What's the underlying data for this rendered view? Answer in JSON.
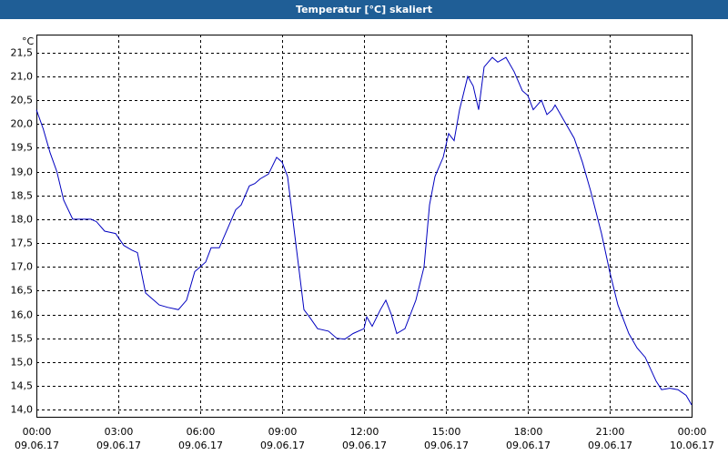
{
  "chart_data": {
    "type": "line",
    "title": "Temperatur [°C] skaliert",
    "y_unit": "°C",
    "x": [
      0,
      0.25,
      0.5,
      0.75,
      1.0,
      1.33,
      2.0,
      2.2,
      2.5,
      2.9,
      3.2,
      3.5,
      3.7,
      4.0,
      4.2,
      4.5,
      4.8,
      5.2,
      5.5,
      5.8,
      6.2,
      6.4,
      6.7,
      7.0,
      7.3,
      7.5,
      7.8,
      8.0,
      8.2,
      8.5,
      8.8,
      9.0,
      9.2,
      9.5,
      9.8,
      10.0,
      10.3,
      10.7,
      11.0,
      11.3,
      11.6,
      12.0,
      12.1,
      12.3,
      12.6,
      12.8,
      13.0,
      13.2,
      13.5,
      13.9,
      14.2,
      14.4,
      14.6,
      14.9,
      15.1,
      15.3,
      15.5,
      15.8,
      16.0,
      16.2,
      16.4,
      16.7,
      16.9,
      17.2,
      17.5,
      17.8,
      18.0,
      18.2,
      18.5,
      18.7,
      18.9,
      19.0,
      19.3,
      19.7,
      20.0,
      20.3,
      20.7,
      21.0,
      21.3,
      21.7,
      22.0,
      22.3,
      22.7,
      22.9,
      23.2,
      23.5,
      23.8,
      24.0
    ],
    "values": [
      20.3,
      19.9,
      19.4,
      19.0,
      18.4,
      18.0,
      18.0,
      17.95,
      17.75,
      17.7,
      17.45,
      17.35,
      17.3,
      16.45,
      16.35,
      16.2,
      16.15,
      16.1,
      16.3,
      16.9,
      17.1,
      17.4,
      17.4,
      17.8,
      18.2,
      18.3,
      18.7,
      18.75,
      18.85,
      18.95,
      19.3,
      19.2,
      18.9,
      17.5,
      16.1,
      15.95,
      15.7,
      15.65,
      15.5,
      15.48,
      15.6,
      15.7,
      15.95,
      15.75,
      16.1,
      16.3,
      16.0,
      15.6,
      15.7,
      16.3,
      17.0,
      18.3,
      18.9,
      19.3,
      19.8,
      19.65,
      20.3,
      21.0,
      20.8,
      20.3,
      21.2,
      21.4,
      21.3,
      21.4,
      21.1,
      20.7,
      20.6,
      20.3,
      20.5,
      20.2,
      20.3,
      20.4,
      20.1,
      19.7,
      19.2,
      18.6,
      17.7,
      16.9,
      16.2,
      15.6,
      15.3,
      15.1,
      14.6,
      14.42,
      14.45,
      14.42,
      14.3,
      14.1
    ],
    "color": "#0000c0",
    "xlim": [
      0,
      24
    ],
    "xticks": [
      {
        "value": 0,
        "label": "00:00"
      },
      {
        "value": 3,
        "label": "03:00"
      },
      {
        "value": 6,
        "label": "06:00"
      },
      {
        "value": 9,
        "label": "09:00"
      },
      {
        "value": 12,
        "label": "12:00"
      },
      {
        "value": 15,
        "label": "15:00"
      },
      {
        "value": 18,
        "label": "18:00"
      },
      {
        "value": 21,
        "label": "21:00"
      },
      {
        "value": 24,
        "label": "00:00"
      }
    ],
    "xtick_dates": [
      "09.06.17",
      "09.06.17",
      "09.06.17",
      "09.06.17",
      "09.06.17",
      "09.06.17",
      "09.06.17",
      "09.06.17",
      "10.06.17"
    ],
    "ylim": [
      13.85,
      21.88
    ],
    "yticks": [
      {
        "value": 14.0,
        "label": "14,0"
      },
      {
        "value": 14.5,
        "label": "14,5"
      },
      {
        "value": 15.0,
        "label": "15,0"
      },
      {
        "value": 15.5,
        "label": "15,5"
      },
      {
        "value": 16.0,
        "label": "16,0"
      },
      {
        "value": 16.5,
        "label": "16,5"
      },
      {
        "value": 17.0,
        "label": "17,0"
      },
      {
        "value": 17.5,
        "label": "17,5"
      },
      {
        "value": 18.0,
        "label": "18,0"
      },
      {
        "value": 18.5,
        "label": "18,5"
      },
      {
        "value": 19.0,
        "label": "19,0"
      },
      {
        "value": 19.5,
        "label": "19,5"
      },
      {
        "value": 20.0,
        "label": "20,0"
      },
      {
        "value": 20.5,
        "label": "20,5"
      },
      {
        "value": 21.0,
        "label": "21,0"
      },
      {
        "value": 21.5,
        "label": "21,5"
      }
    ],
    "grid": true
  }
}
